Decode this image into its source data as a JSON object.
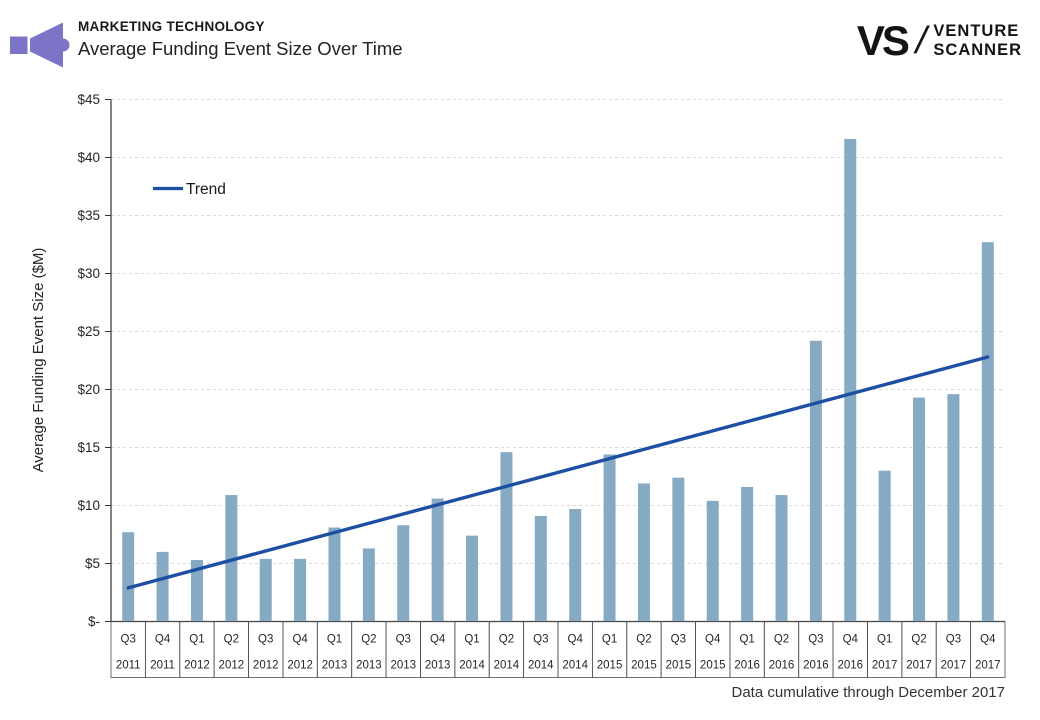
{
  "header": {
    "kicker": "MARKETING TECHNOLOGY",
    "title": "Average Funding Event Size Over Time",
    "icon": "megaphone-icon",
    "icon_color": "#7C74C6"
  },
  "logo": {
    "monogram": "VS",
    "slash": "/",
    "line1": "VENTURE",
    "line2": "SCANNER"
  },
  "footer": {
    "note": "Data cumulative through December 2017"
  },
  "chart_data": {
    "type": "bar",
    "title": "Average Funding Event Size Over Time",
    "xlabel": "",
    "ylabel": "Average Funding Event Size ($M)",
    "ylim": [
      0,
      45
    ],
    "ytick_step": 5,
    "ytick_labels": [
      "$-",
      "$5",
      "$10",
      "$15",
      "$20",
      "$25",
      "$30",
      "$35",
      "$40",
      "$45"
    ],
    "grid": true,
    "legend": {
      "label": "Trend",
      "position": "inside-top-left"
    },
    "categories": [
      {
        "quarter": "Q3",
        "year": "2011"
      },
      {
        "quarter": "Q4",
        "year": "2011"
      },
      {
        "quarter": "Q1",
        "year": "2012"
      },
      {
        "quarter": "Q2",
        "year": "2012"
      },
      {
        "quarter": "Q3",
        "year": "2012"
      },
      {
        "quarter": "Q4",
        "year": "2012"
      },
      {
        "quarter": "Q1",
        "year": "2013"
      },
      {
        "quarter": "Q2",
        "year": "2013"
      },
      {
        "quarter": "Q3",
        "year": "2013"
      },
      {
        "quarter": "Q4",
        "year": "2013"
      },
      {
        "quarter": "Q1",
        "year": "2014"
      },
      {
        "quarter": "Q2",
        "year": "2014"
      },
      {
        "quarter": "Q3",
        "year": "2014"
      },
      {
        "quarter": "Q4",
        "year": "2014"
      },
      {
        "quarter": "Q1",
        "year": "2015"
      },
      {
        "quarter": "Q2",
        "year": "2015"
      },
      {
        "quarter": "Q3",
        "year": "2015"
      },
      {
        "quarter": "Q4",
        "year": "2015"
      },
      {
        "quarter": "Q1",
        "year": "2016"
      },
      {
        "quarter": "Q2",
        "year": "2016"
      },
      {
        "quarter": "Q3",
        "year": "2016"
      },
      {
        "quarter": "Q4",
        "year": "2016"
      },
      {
        "quarter": "Q1",
        "year": "2017"
      },
      {
        "quarter": "Q2",
        "year": "2017"
      },
      {
        "quarter": "Q3",
        "year": "2017"
      },
      {
        "quarter": "Q4",
        "year": "2017"
      }
    ],
    "series": [
      {
        "name": "Average Funding Event Size ($M)",
        "type": "bar",
        "color": "#87AAC4",
        "values": [
          7.7,
          6.0,
          5.3,
          10.9,
          5.4,
          5.4,
          8.1,
          6.3,
          8.3,
          10.6,
          7.4,
          14.6,
          9.1,
          9.7,
          14.4,
          11.9,
          12.4,
          10.4,
          11.6,
          10.9,
          24.2,
          41.6,
          13.0,
          19.3,
          19.6,
          32.7
        ]
      },
      {
        "name": "Trend",
        "type": "line",
        "color": "#1D4FA3",
        "endpoint_values": [
          2.9,
          22.8
        ]
      }
    ]
  },
  "style": {
    "bar_color": "#87AAC4",
    "trend_color": "#1D4FA3",
    "grid_color": "#D9D9D9",
    "axis_color": "#333333",
    "box_border_color": "#4D4D4D",
    "text_color": "#262626"
  }
}
